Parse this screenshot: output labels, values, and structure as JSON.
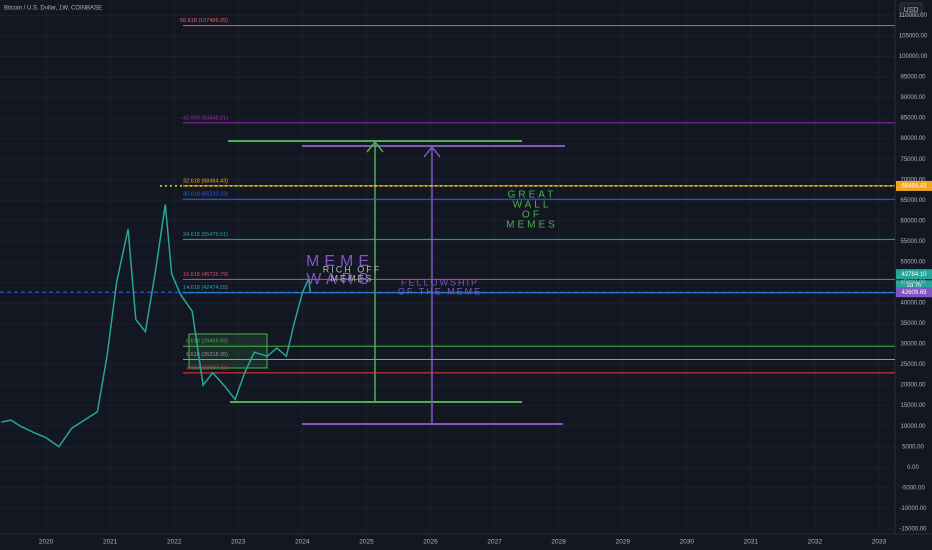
{
  "chart_data": {
    "type": "line",
    "title": "Bitcoin / U.S. Dollar, 1W, COINBASE",
    "currency": "USD",
    "xlim": [
      2019.28,
      2033.25
    ],
    "xticks": [
      2020,
      2021,
      2022,
      2023,
      2024,
      2025,
      2026,
      2027,
      2028,
      2029,
      2030,
      2031,
      2032,
      2033
    ],
    "ylim": [
      -16250,
      113750
    ],
    "yticks": [
      {
        "value": 110000,
        "label": "110000.00"
      },
      {
        "value": 105000,
        "label": "105000.00"
      },
      {
        "value": 100000,
        "label": "100000.00"
      },
      {
        "value": 95000,
        "label": "95000.00"
      },
      {
        "value": 90000,
        "label": "90000.00"
      },
      {
        "value": 85000,
        "label": "85000.00"
      },
      {
        "value": 80000,
        "label": "80000.00"
      },
      {
        "value": 75000,
        "label": "75000.00"
      },
      {
        "value": 70000,
        "label": "70000.00"
      },
      {
        "value": 65000,
        "label": "65000.00"
      },
      {
        "value": 60000,
        "label": "60000.00"
      },
      {
        "value": 55000,
        "label": "55000.00"
      },
      {
        "value": 50000,
        "label": "50000.00"
      },
      {
        "value": 45000,
        "label": "45000.00"
      },
      {
        "value": 40000,
        "label": "40000.00"
      },
      {
        "value": 35000,
        "label": "35000.00"
      },
      {
        "value": 30000,
        "label": "30000.00"
      },
      {
        "value": 25000,
        "label": "25000.00"
      },
      {
        "value": 20000,
        "label": "20000.00"
      },
      {
        "value": 15000,
        "label": "15000.00"
      },
      {
        "value": 10000,
        "label": "10000.00"
      },
      {
        "value": 5000,
        "label": "5000.00"
      },
      {
        "value": 0,
        "label": "0.00"
      },
      {
        "value": -5000,
        "label": "-5000.00"
      },
      {
        "value": -10000,
        "label": "-10000.00"
      },
      {
        "value": -15000,
        "label": "-15000.00"
      }
    ],
    "grid": true,
    "series": [
      {
        "color": "#26a69a",
        "x": [
          2019.3,
          2019.45,
          2019.6,
          2019.8,
          2020.0,
          2020.2,
          2020.4,
          2020.6,
          2020.8,
          2020.95,
          2021.1,
          2021.28,
          2021.4,
          2021.55,
          2021.7,
          2021.86,
          2021.96,
          2022.1,
          2022.28,
          2022.45,
          2022.6,
          2022.8,
          2022.95,
          2023.1,
          2023.25,
          2023.45,
          2023.6,
          2023.75,
          2023.87,
          2024.0,
          2024.1,
          2024.12
        ],
        "values": [
          11000,
          11500,
          10000,
          8500,
          7200,
          5000,
          9500,
          11500,
          13500,
          27000,
          45000,
          58000,
          36000,
          33000,
          47000,
          64000,
          47000,
          42000,
          38000,
          20000,
          23000,
          19500,
          16500,
          23000,
          28000,
          27000,
          29000,
          27000,
          35000,
          42500,
          46000,
          42600
        ]
      }
    ],
    "levels": [
      {
        "label": "56.618 (107499.25)",
        "value": 107499.25,
        "color": "#f05a6a"
      },
      {
        "label": "42.069 (83848.21)",
        "value": 83848.21,
        "color": "#9c27b0"
      },
      {
        "label": "32.618 (68484.43)",
        "value": 68484.43,
        "color": "#f5a623"
      },
      {
        "label": "30.618 (65233.23)",
        "value": 65233.23,
        "color": "#2962ff"
      },
      {
        "label": "24.618 (55479.51)",
        "value": 55479.51,
        "color": "#26a6a6"
      },
      {
        "label": "16.618 (45725.79)",
        "value": 45725.79,
        "color": "#e04a7a"
      },
      {
        "label": "14.618 (42474.55)",
        "value": 42474.55,
        "color": "#2aa3c8"
      },
      {
        "label": "8.618 (29469.59)",
        "value": 29469.59,
        "color": "#4caf50"
      },
      {
        "label": "6.618 (26218.35)",
        "value": 26218.35,
        "color": "#9598a1"
      },
      {
        "label": "4.618 (22967.11)",
        "value": 22967.11,
        "color": "#f23645"
      }
    ],
    "price_labels": [
      {
        "label": "68484.43",
        "value": 68484.43,
        "color": "#f5a623"
      },
      {
        "label": "42784.10",
        "value": 47000,
        "color": "#26a69a"
      },
      {
        "label": "2d 7h",
        "value": 44300,
        "color": "#26a69a"
      },
      {
        "label": "42609.69",
        "value": 42609.69,
        "color": "#7e57c2"
      }
    ],
    "annotations": [
      {
        "lines": [
          "GREAT",
          "WALL",
          "OF",
          "MEMES"
        ],
        "color": "#4caf50"
      },
      {
        "lines": [
          "MEME",
          "WARS"
        ],
        "color": "#7e57c2"
      },
      {
        "lines": [
          "RICH OFF",
          "MEMES"
        ],
        "color": "#b2b5be"
      },
      {
        "lines": [
          "FELLOWSHIP",
          "OF THE MEME"
        ],
        "color": "#7e57c2"
      }
    ]
  }
}
